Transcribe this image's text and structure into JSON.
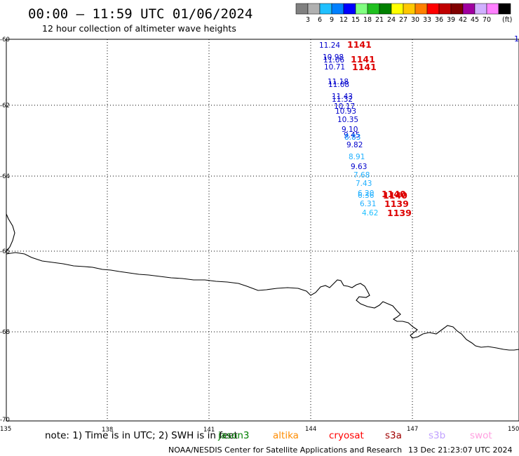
{
  "header": {
    "title": "00:00 – 11:59 UTC 01/06/2024",
    "subtitle": "12 hour collection of altimeter wave heights"
  },
  "colorbar": {
    "unit": "(ft)",
    "bins": [
      {
        "label": "",
        "color": "#808080"
      },
      {
        "label": "3",
        "color": "#b0b0b0"
      },
      {
        "label": "6",
        "color": "#20c0ff"
      },
      {
        "label": "9",
        "color": "#0080ff"
      },
      {
        "label": "12",
        "color": "#0000ff"
      },
      {
        "label": "15",
        "color": "#80ff80"
      },
      {
        "label": "18",
        "color": "#20c020"
      },
      {
        "label": "21",
        "color": "#008000"
      },
      {
        "label": "24",
        "color": "#ffff00"
      },
      {
        "label": "27",
        "color": "#ffc800"
      },
      {
        "label": "30",
        "color": "#ff8000"
      },
      {
        "label": "33",
        "color": "#ff0000"
      },
      {
        "label": "36",
        "color": "#c00000"
      },
      {
        "label": "39",
        "color": "#800000"
      },
      {
        "label": "42",
        "color": "#a000a0"
      },
      {
        "label": "45",
        "color": "#d0b0ff"
      },
      {
        "label": "70",
        "color": "#ff80ff"
      },
      {
        "label": "",
        "color": "#000000"
      }
    ]
  },
  "map": {
    "lat_labels": [
      "-60",
      "-62",
      "-64",
      "-66",
      "-68",
      "-70"
    ],
    "lon_labels": [
      "135",
      "138",
      "141",
      "144",
      "147",
      "150"
    ],
    "edge_label": "1"
  },
  "observations": [
    {
      "text": "11.24",
      "color": "#0000cc"
    },
    {
      "text": "10.98",
      "color": "#0000cc"
    },
    {
      "text": "11.06",
      "color": "#0000cc"
    },
    {
      "text": "10.71",
      "color": "#0000cc"
    },
    {
      "text": "11.18",
      "color": "#0000cc"
    },
    {
      "text": "11.08",
      "color": "#0000cc"
    },
    {
      "text": "11.43",
      "color": "#0000cc"
    },
    {
      "text": "11.32",
      "color": "#0000cc"
    },
    {
      "text": "10.17",
      "color": "#0000cc"
    },
    {
      "text": "10.93",
      "color": "#0000cc"
    },
    {
      "text": "10.35",
      "color": "#0000cc"
    },
    {
      "text": "9.10",
      "color": "#0000cc"
    },
    {
      "text": "9.45",
      "color": "#0000cc"
    },
    {
      "text": "8.83",
      "color": "#0090ff"
    },
    {
      "text": "9.82",
      "color": "#0000cc"
    },
    {
      "text": "8.91",
      "color": "#20b0ff"
    },
    {
      "text": "9.63",
      "color": "#0000cc"
    },
    {
      "text": "7.68",
      "color": "#20b0ff"
    },
    {
      "text": "7.43",
      "color": "#20b0ff"
    },
    {
      "text": "6.20",
      "color": "#20b0ff"
    },
    {
      "text": "6.36",
      "color": "#20b0ff"
    },
    {
      "text": "6.31",
      "color": "#20b0ff"
    },
    {
      "text": "4.62",
      "color": "#20c0ff"
    }
  ],
  "pass_times": [
    {
      "text": "1141"
    },
    {
      "text": "1141"
    },
    {
      "text": "1141"
    },
    {
      "text": "1140"
    },
    {
      "text": "1140"
    },
    {
      "text": "1139"
    },
    {
      "text": "1139"
    }
  ],
  "footer": {
    "note": "note: 1) Time is in UTC; 2) SWH is in feet",
    "satellites": [
      {
        "name": "jason3",
        "color": "#008000"
      },
      {
        "name": "altika",
        "color": "#ff8c00"
      },
      {
        "name": "cryosat",
        "color": "#ff0000"
      },
      {
        "name": "s3a",
        "color": "#a00000"
      },
      {
        "name": "s3b",
        "color": "#c0a0ff"
      },
      {
        "name": "swot",
        "color": "#ffa0e0"
      }
    ],
    "credit": "NOAA/NESDIS Center for Satellite Applications and Research",
    "timestamp": "13 Dec 21:23:07 UTC 2024"
  }
}
